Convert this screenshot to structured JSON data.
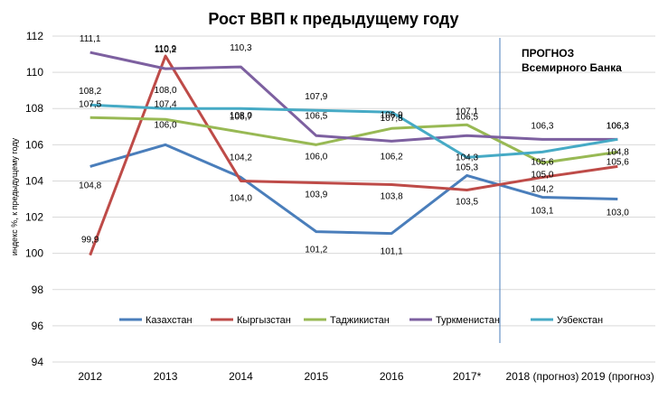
{
  "chart_data": {
    "type": "line",
    "title": "Рост ВВП к предыдущему году",
    "xlabel": "",
    "ylabel": "индекс %, к предыдущему году",
    "categories": [
      "2012",
      "2013",
      "2014",
      "2015",
      "2016",
      "2017*",
      "2018 (прогноз)",
      "2019 (прогноз)"
    ],
    "ylim": [
      94,
      112
    ],
    "yticks": [
      "94",
      "96",
      "98",
      "100",
      "102",
      "104",
      "106",
      "108",
      "110",
      "112"
    ],
    "grid": true,
    "legend_position": "bottom",
    "forecast_note": [
      "ПРОГНОЗ",
      "Всемирного Банка"
    ],
    "series": [
      {
        "name": "Казахстан",
        "color": "#4a7ebb",
        "values": [
          104.8,
          106.0,
          104.2,
          101.2,
          101.1,
          104.3,
          103.1,
          103.0
        ],
        "labels": [
          "104,8",
          "106,0",
          "104,2",
          "101,2",
          "101,1",
          "104,3",
          "103,1",
          "103,0"
        ]
      },
      {
        "name": "Кыргызстан",
        "color": "#be4b48",
        "values": [
          99.9,
          110.9,
          104.0,
          103.9,
          103.8,
          103.5,
          104.2,
          104.8
        ],
        "labels": [
          "99,9",
          "110,9",
          "104,0",
          "103,9",
          "103,8",
          "103,5",
          "104,2",
          "104,8"
        ]
      },
      {
        "name": "Таджикистан",
        "color": "#98b954",
        "values": [
          107.5,
          107.4,
          106.7,
          106.0,
          106.9,
          107.1,
          105.0,
          105.6
        ],
        "labels": [
          "107,5",
          "107,4",
          "106,7",
          "106,0",
          "106,9",
          "107,1",
          "105,0",
          "105,6"
        ]
      },
      {
        "name": "Туркменистан",
        "color": "#7d60a0",
        "values": [
          111.1,
          110.2,
          110.3,
          106.5,
          106.2,
          106.5,
          106.3,
          106.3
        ],
        "labels": [
          "111,1",
          "110,2",
          "110,3",
          "106,5",
          "106,2",
          "106,5",
          "106,3",
          "106,3"
        ]
      },
      {
        "name": "Узбекстан",
        "color": "#46aac5",
        "values": [
          108.2,
          108.0,
          108.0,
          107.9,
          107.8,
          105.3,
          105.6,
          106.3
        ],
        "labels": [
          "108,2",
          "108,0",
          "108,0",
          "107,9",
          "107,8",
          "105,3",
          "105,6",
          "106,3"
        ]
      }
    ]
  }
}
